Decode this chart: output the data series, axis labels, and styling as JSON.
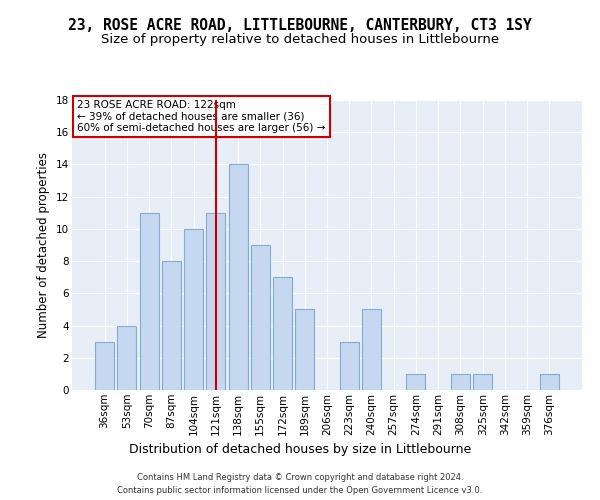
{
  "title": "23, ROSE ACRE ROAD, LITTLEBOURNE, CANTERBURY, CT3 1SY",
  "subtitle": "Size of property relative to detached houses in Littlebourne",
  "xlabel": "Distribution of detached houses by size in Littlebourne",
  "ylabel": "Number of detached properties",
  "categories": [
    "36sqm",
    "53sqm",
    "70sqm",
    "87sqm",
    "104sqm",
    "121sqm",
    "138sqm",
    "155sqm",
    "172sqm",
    "189sqm",
    "206sqm",
    "223sqm",
    "240sqm",
    "257sqm",
    "274sqm",
    "291sqm",
    "308sqm",
    "325sqm",
    "342sqm",
    "359sqm",
    "376sqm"
  ],
  "values": [
    3,
    4,
    11,
    8,
    10,
    11,
    14,
    9,
    7,
    5,
    0,
    3,
    5,
    0,
    1,
    0,
    1,
    1,
    0,
    0,
    1
  ],
  "bar_color": "#c5d8f0",
  "bar_edge_color": "#7eadd4",
  "vline_bar_index": 5,
  "vline_color": "#cc0000",
  "annotation_line1": "23 ROSE ACRE ROAD: 122sqm",
  "annotation_line2": "← 39% of detached houses are smaller (36)",
  "annotation_line3": "60% of semi-detached houses are larger (56) →",
  "annotation_box_color": "#cc0000",
  "ylim": [
    0,
    18
  ],
  "yticks": [
    0,
    2,
    4,
    6,
    8,
    10,
    12,
    14,
    16,
    18
  ],
  "background_color": "#e8eef8",
  "grid_color": "#ffffff",
  "footer_line1": "Contains HM Land Registry data © Crown copyright and database right 2024.",
  "footer_line2": "Contains public sector information licensed under the Open Government Licence v3.0.",
  "title_fontsize": 10.5,
  "subtitle_fontsize": 9.5,
  "xlabel_fontsize": 9,
  "ylabel_fontsize": 8.5,
  "tick_fontsize": 7.5,
  "ann_fontsize": 7.5,
  "footer_fontsize": 6.0
}
